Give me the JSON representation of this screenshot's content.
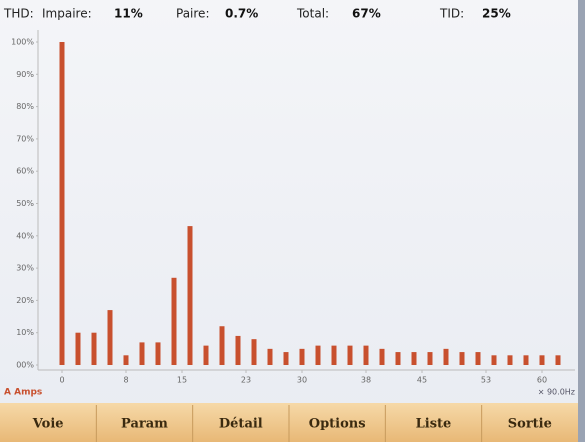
{
  "header": {
    "thd": "THD:",
    "odd_label": "Impaire:",
    "odd_value": "11%",
    "even_label": "Paire:",
    "even_value": "0.7%",
    "total_label": "Total:",
    "total_value": "67%",
    "tid_label": "TID:",
    "tid_value": "25%"
  },
  "chart_data": {
    "type": "bar",
    "x": [
      0,
      2,
      4,
      6,
      8,
      10,
      12,
      14,
      16,
      18,
      20,
      22,
      24,
      26,
      28,
      30,
      32,
      34,
      36,
      38,
      40,
      42,
      44,
      46,
      48,
      50,
      52,
      54,
      56,
      58,
      60,
      62
    ],
    "values": [
      100,
      10,
      10,
      17,
      3,
      7,
      7,
      27,
      43,
      6,
      12,
      9,
      8,
      5,
      4,
      5,
      6,
      6,
      6,
      6,
      5,
      4,
      4,
      4,
      5,
      4,
      4,
      3,
      3,
      3,
      3,
      3
    ],
    "color": "#c8502e",
    "xlim": [
      -3,
      64
    ],
    "xticks": [
      0,
      8,
      15,
      23,
      30,
      38,
      45,
      53,
      60
    ],
    "ylim": [
      0,
      100
    ],
    "yticks": [
      {
        "value": 0,
        "label": "00%"
      },
      {
        "value": 10,
        "label": "10%"
      },
      {
        "value": 20,
        "label": "20%"
      },
      {
        "value": 30,
        "label": "30%"
      },
      {
        "value": 40,
        "label": "40%"
      },
      {
        "value": 50,
        "label": "50%"
      },
      {
        "value": 60,
        "label": "60%"
      },
      {
        "value": 70,
        "label": "70%"
      },
      {
        "value": 80,
        "label": "80%"
      },
      {
        "value": 90,
        "label": "90%"
      },
      {
        "value": 100,
        "label": "100%"
      }
    ],
    "unit_label": "A Amps",
    "frequency_label": "× 90.0Hz"
  },
  "buttons": [
    "Voie",
    "Param",
    "Détail",
    "Options",
    "Liste",
    "Sortie"
  ]
}
